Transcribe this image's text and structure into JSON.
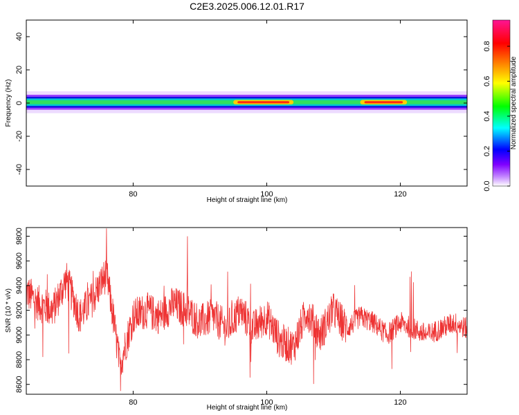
{
  "title": "C2E3.2025.006.12.01.R17",
  "chart_data": [
    {
      "type": "heatmap",
      "xlabel": "Height of straight line (km)",
      "ylabel": "Frequency (Hz)",
      "xlim": [
        64,
        130
      ],
      "ylim": [
        -50,
        50
      ],
      "x_ticks": [
        80,
        100,
        120
      ],
      "y_ticks": [
        -40,
        -20,
        0,
        20,
        40
      ],
      "x_tick_labels": [
        "80",
        "100",
        "120"
      ],
      "y_tick_labels": [
        "-40",
        "-20",
        "0",
        "20",
        "40"
      ],
      "band_center_hz": 0.5,
      "band_halfwidth_hz": 3,
      "band_peak_amplitude_regions_km": [
        [
          95,
          104
        ],
        [
          114,
          121
        ]
      ],
      "colorbar": {
        "label": "Normalized spectral amplitude",
        "range": [
          0,
          0.95
        ],
        "ticks": [
          0.0,
          0.2,
          0.4,
          0.6,
          0.8
        ],
        "tick_labels": [
          "0.0",
          "0.2",
          "0.4",
          "0.6",
          "0.8"
        ],
        "colormap": [
          "#ffffff",
          "#7f00ff",
          "#0000ff",
          "#00ffff",
          "#00ff00",
          "#ffff00",
          "#ff8000",
          "#ff0000",
          "#ff1493"
        ]
      }
    },
    {
      "type": "line",
      "xlabel": "Height of straight line (km)",
      "ylabel": "SNR (10 * v/v)",
      "xlim": [
        64,
        130
      ],
      "ylim": [
        8520,
        9870
      ],
      "x_ticks": [
        80,
        100,
        120
      ],
      "y_ticks": [
        8600,
        8800,
        9000,
        9200,
        9400,
        9600,
        9800
      ],
      "x_tick_labels": [
        "80",
        "100",
        "120"
      ],
      "y_tick_labels": [
        "8600",
        "8800",
        "9000",
        "9200",
        "9400",
        "9600",
        "9800"
      ],
      "line_color": "#ee3333",
      "series": [
        {
          "x": [
            64,
            66,
            68,
            70,
            72,
            74,
            76,
            77,
            78,
            80,
            82,
            84,
            86,
            88,
            90,
            92,
            94,
            96,
            98,
            100,
            102,
            104,
            106,
            108,
            110,
            112,
            114,
            116,
            118,
            120,
            122,
            124,
            126,
            128,
            130
          ],
          "values": [
            9350,
            9250,
            9200,
            9450,
            9150,
            9300,
            9500,
            9150,
            8750,
            9150,
            9200,
            9150,
            9250,
            9200,
            9100,
            9150,
            9050,
            9200,
            9050,
            9150,
            8950,
            8900,
            9200,
            9000,
            9200,
            9050,
            9150,
            9100,
            9000,
            9100,
            9050,
            9000,
            9050,
            9100,
            9050
          ]
        }
      ]
    }
  ]
}
